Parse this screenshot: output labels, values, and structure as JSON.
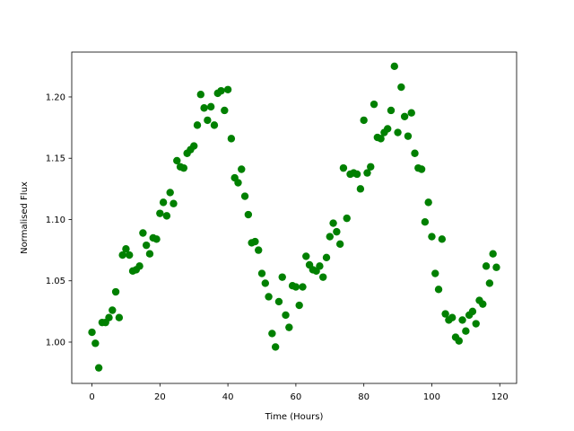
{
  "chart_data": {
    "type": "scatter",
    "x_label": "Time (Hours)",
    "y_label": "Normalised Flux",
    "x": [
      0,
      1,
      2,
      3,
      4,
      5,
      6,
      7,
      8,
      9,
      10,
      11,
      12,
      13,
      14,
      15,
      16,
      17,
      18,
      19,
      20,
      21,
      22,
      23,
      24,
      25,
      26,
      27,
      28,
      29,
      30,
      31,
      32,
      33,
      34,
      35,
      36,
      37,
      38,
      39,
      40,
      41,
      42,
      43,
      44,
      45,
      46,
      47,
      48,
      49,
      50,
      51,
      52,
      53,
      54,
      55,
      56,
      57,
      58,
      59,
      60,
      61,
      62,
      63,
      64,
      65,
      66,
      67,
      68,
      69,
      70,
      71,
      72,
      73,
      74,
      75,
      76,
      77,
      78,
      79,
      80,
      81,
      82,
      83,
      84,
      85,
      86,
      87,
      88,
      89,
      90,
      91,
      92,
      93,
      94,
      95,
      96,
      97,
      98,
      99,
      100,
      101,
      102,
      103,
      104,
      105,
      106,
      107,
      108,
      109,
      110,
      111,
      112,
      113,
      114,
      115,
      116,
      117,
      118,
      119
    ],
    "series": [
      {
        "color": "#008000",
        "values": [
          1.008,
          0.999,
          0.979,
          1.016,
          1.016,
          1.02,
          1.026,
          1.041,
          1.02,
          1.071,
          1.076,
          1.071,
          1.058,
          1.059,
          1.062,
          1.089,
          1.079,
          1.072,
          1.085,
          1.084,
          1.105,
          1.114,
          1.103,
          1.122,
          1.113,
          1.148,
          1.143,
          1.142,
          1.154,
          1.157,
          1.16,
          1.177,
          1.202,
          1.191,
          1.181,
          1.192,
          1.177,
          1.203,
          1.205,
          1.189,
          1.206,
          1.166,
          1.134,
          1.13,
          1.141,
          1.119,
          1.104,
          1.081,
          1.082,
          1.075,
          1.056,
          1.048,
          1.037,
          1.007,
          0.996,
          1.033,
          1.053,
          1.022,
          1.012,
          1.046,
          1.045,
          1.03,
          1.045,
          1.07,
          1.063,
          1.059,
          1.058,
          1.062,
          1.053,
          1.069,
          1.086,
          1.097,
          1.09,
          1.08,
          1.142,
          1.101,
          1.137,
          1.138,
          1.137,
          1.125,
          1.181,
          1.138,
          1.143,
          1.194,
          1.167,
          1.166,
          1.171,
          1.174,
          1.189,
          1.225,
          1.171,
          1.208,
          1.184,
          1.168,
          1.187,
          1.154,
          1.142,
          1.141,
          1.098,
          1.114,
          1.086,
          1.056,
          1.043,
          1.084,
          1.023,
          1.018,
          1.02,
          1.004,
          1.001,
          1.018,
          1.009,
          1.022,
          1.025,
          1.015,
          1.034,
          1.031,
          1.062,
          1.048,
          1.072,
          1.061
        ]
      }
    ],
    "xlim": [
      -5.95,
      124.95
    ],
    "xticks": [
      0,
      20,
      40,
      60,
      80,
      100,
      120
    ],
    "ylim": [
      0.9663,
      1.2366
    ],
    "yticks": [
      {
        "value": 1,
        "label": "1.00"
      },
      1.05,
      {
        "value": 1.1,
        "label": "1.10"
      },
      1.15,
      {
        "value": 1.2,
        "label": "1.20"
      }
    ]
  }
}
